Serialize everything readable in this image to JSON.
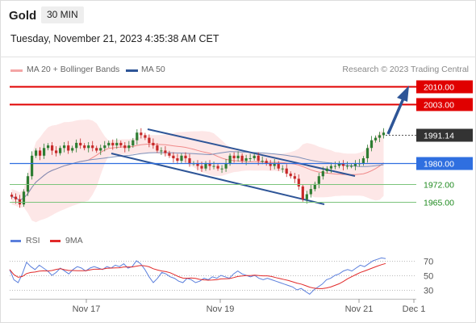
{
  "header": {
    "symbol": "Gold",
    "timeframe": "30 MIN"
  },
  "datetime": "Tuesday, November 21, 2023 4:35:38 AM CET",
  "legend": [
    {
      "label": "MA 20 + Bollinger Bands",
      "color": "#f4a5a5"
    },
    {
      "label": "MA 50",
      "color": "#2e5597"
    }
  ],
  "credit": "Research © 2023 Trading Central",
  "rsi_legend": [
    {
      "label": "RSI",
      "color": "#5b7fdc"
    },
    {
      "label": "9MA",
      "color": "#e12a2a"
    }
  ],
  "chart_data": [
    {
      "type": "candlestick",
      "title": "Gold",
      "timeframe": "30 MIN",
      "x_ticks": [
        "Nov 17",
        "Nov 19",
        "Nov 21",
        "Dec 1"
      ],
      "last_price": 1991.14,
      "levels": [
        {
          "value": 2010.0,
          "label": "2010.00",
          "color": "#e00000",
          "kind": "resistance"
        },
        {
          "value": 2003.0,
          "label": "2003.00",
          "color": "#e00000",
          "kind": "resistance"
        },
        {
          "value": 1991.14,
          "label": "1991.14",
          "color": "#333333",
          "kind": "last"
        },
        {
          "value": 1980.0,
          "label": "1980.00",
          "color": "#2f6fe0",
          "kind": "pivot"
        },
        {
          "value": 1972.0,
          "label": "1972.00",
          "color": "#1f8a1f",
          "kind": "support"
        },
        {
          "value": 1965.0,
          "label": "1965.00",
          "color": "#1f8a1f",
          "kind": "support"
        }
      ],
      "approx_path_closes": [
        1967,
        1966,
        1964,
        1969,
        1975,
        1983,
        1985,
        1983,
        1986,
        1987,
        1985,
        1984,
        1986,
        1987,
        1985,
        1986,
        1988,
        1987,
        1986,
        1987,
        1986,
        1985,
        1986,
        1987,
        1988,
        1987,
        1988,
        1987,
        1986,
        1987,
        1989,
        1992,
        1991,
        1990,
        1988,
        1987,
        1985,
        1985,
        1984,
        1983,
        1982,
        1981,
        1983,
        1982,
        1980,
        1980,
        1979,
        1978,
        1980,
        1979,
        1979,
        1978,
        1978,
        1980,
        1983,
        1982,
        1983,
        1981,
        1982,
        1982,
        1983,
        1981,
        1981,
        1980,
        1979,
        1980,
        1978,
        1978,
        1976,
        1975,
        1974,
        1971,
        1966,
        1968,
        1970,
        1972,
        1975,
        1977,
        1978,
        1979,
        1979,
        1980,
        1979,
        1979,
        1979,
        1980,
        1980,
        1982,
        1986,
        1989,
        1990,
        1991,
        1992
      ]
    },
    {
      "type": "line",
      "title": "RSI",
      "series": [
        {
          "name": "RSI",
          "color": "#5b7fdc"
        },
        {
          "name": "9MA",
          "color": "#e12a2a"
        }
      ],
      "y_ticks": [
        70,
        50,
        30
      ],
      "ylim": [
        20,
        80
      ],
      "rsi_approx": [
        58,
        44,
        40,
        52,
        68,
        62,
        58,
        64,
        60,
        56,
        50,
        54,
        60,
        56,
        52,
        58,
        62,
        60,
        56,
        60,
        62,
        60,
        58,
        62,
        60,
        64,
        62,
        66,
        60,
        62,
        70,
        66,
        58,
        48,
        40,
        46,
        54,
        52,
        48,
        46,
        42,
        40,
        46,
        44,
        40,
        42,
        46,
        44,
        48,
        46,
        50,
        48,
        46,
        52,
        56,
        52,
        50,
        48,
        50,
        46,
        44,
        46,
        44,
        42,
        40,
        38,
        36,
        34,
        30,
        32,
        28,
        24,
        30,
        34,
        38,
        44,
        46,
        50,
        52,
        56,
        58,
        56,
        60,
        64,
        62,
        66,
        70,
        72,
        74,
        73
      ]
    }
  ]
}
